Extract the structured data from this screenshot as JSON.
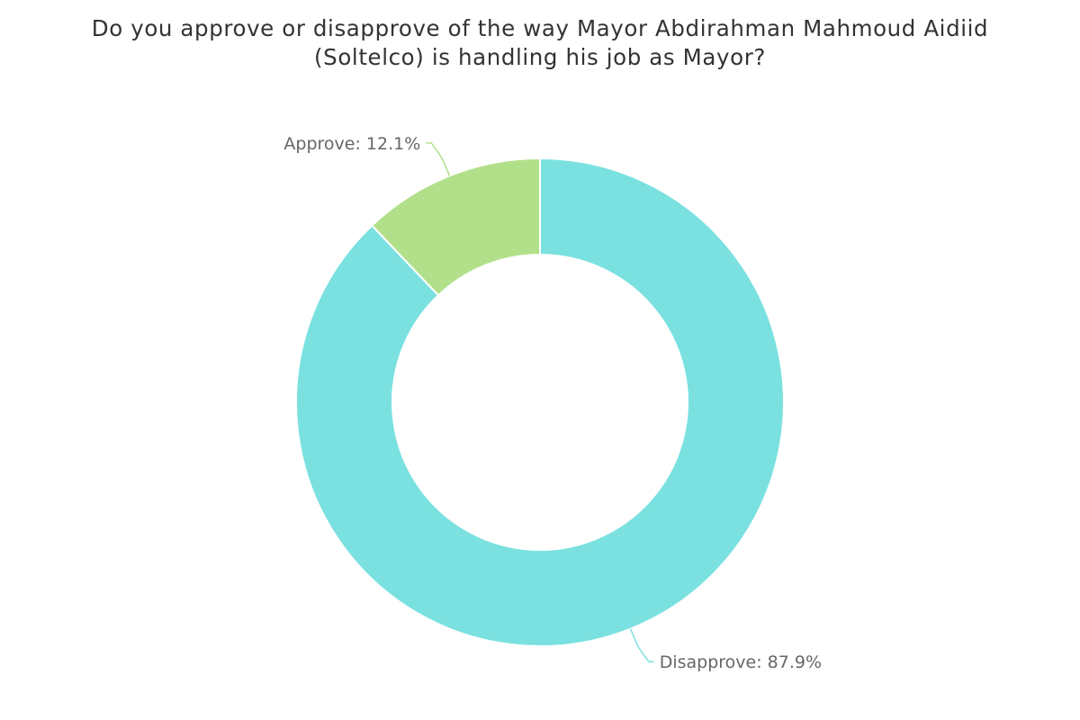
{
  "chart_data": {
    "type": "pie",
    "variant": "donut",
    "title_lines": [
      "Do you approve or disapprove of the way Mayor Abdirahman Mahmoud Aidiid",
      "(Soltelco) is handling his job as Mayor?"
    ],
    "slices": [
      {
        "name": "Approve",
        "value": 12.1,
        "label": "Approve: 12.1%",
        "color": "#b2e08a"
      },
      {
        "name": "Disapprove",
        "value": 87.9,
        "label": "Disapprove: 87.9%",
        "color": "#7ae1e0"
      }
    ],
    "legend": "none",
    "labels": "outside-with-leader-lines"
  }
}
